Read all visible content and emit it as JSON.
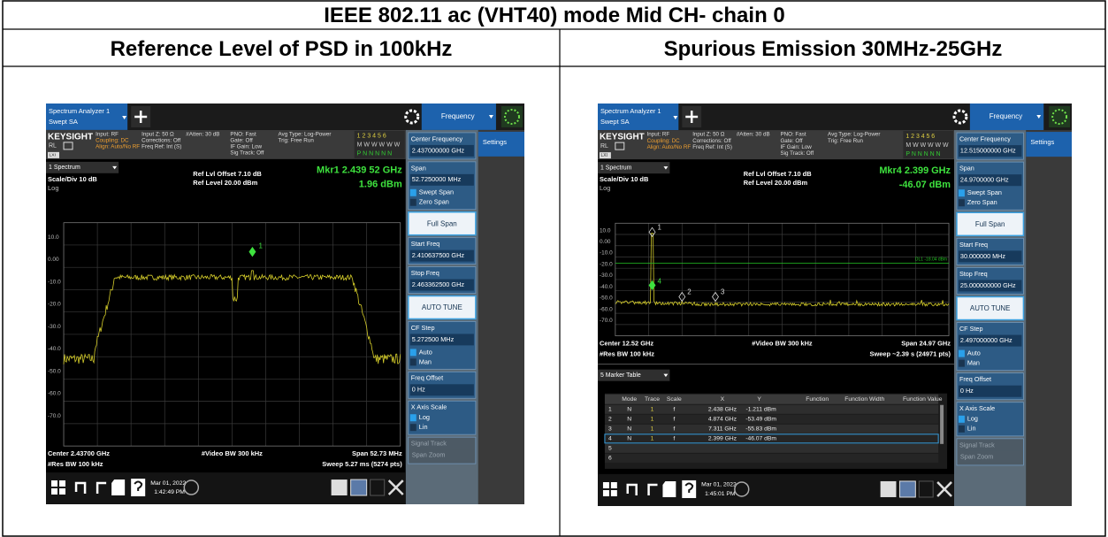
{
  "title": "IEEE 802.11 ac (VHT40) mode Mid CH- chain 0",
  "columns": [
    "Reference Level of PSD in 100kHz",
    "Spurious Emission 30MHz-25GHz"
  ],
  "screens": [
    {
      "app": [
        "Spectrum Analyzer 1",
        "Swept SA"
      ],
      "tab": "Frequency",
      "settings": "Settings",
      "brand": "KEYSIGHT",
      "rl": "RL",
      "lxi": "LXI",
      "info": [
        [
          "Input: RF",
          "Coupling: DC",
          "Align: Auto/No RF"
        ],
        [
          "Input Z: 50 Ω",
          "Corrections: Off",
          "Freq Ref: Int (S)"
        ],
        [
          "#Atten: 30 dB"
        ],
        [
          "PNO: Fast",
          "Gate: Off",
          "IF Gain: Low",
          "Sig Track: Off"
        ],
        [
          "Avg Type: Log-Power",
          "Trig: Free Run"
        ]
      ],
      "traces": [
        "1 2 3 4 5 6",
        "M W W W W W",
        "P N N N N N"
      ],
      "window": "1 Spectrum",
      "scale": "Scale/Div 10 dB",
      "log": "Log",
      "ref": [
        "Ref Lvl Offset 7.10 dB",
        "Ref Level 20.00 dBm"
      ],
      "marker": [
        "Mkr1  2.439 52 GHz",
        "1.96 dBm"
      ],
      "marker_labels": [
        "1"
      ],
      "ylabels": [
        "10.0",
        "0.00",
        "-10.0",
        "-20.0",
        "-30.0",
        "-40.0",
        "-50.0",
        "-60.0",
        "-70.0"
      ],
      "footer": {
        "left": [
          "Center 2.43700 GHz",
          "#Res BW 100 kHz"
        ],
        "mid": "#Video BW 300 kHz",
        "right": [
          "Span 52.73 MHz",
          "Sweep 5.27 ms (5274 pts)"
        ]
      },
      "softkeys": [
        {
          "label": "Center Frequency",
          "value": "2.437000000 GHz"
        },
        {
          "label": "Span",
          "value": "52.7250000 MHz",
          "options": [
            "Swept Span",
            "Zero Span"
          ]
        },
        {
          "button": "Full Span"
        },
        {
          "label": "Start Freq",
          "value": "2.410637500 GHz"
        },
        {
          "label": "Stop Freq",
          "value": "2.463362500 GHz"
        },
        {
          "button": "AUTO TUNE"
        },
        {
          "label": "CF Step",
          "value": "5.272500 MHz",
          "options": [
            "Auto",
            "Man"
          ]
        },
        {
          "label": "Freq Offset",
          "value": "0 Hz"
        },
        {
          "label": "X Axis Scale",
          "options": [
            "Log",
            "Lin"
          ]
        },
        {
          "label": "Signal Track",
          "value": "Span Zoom",
          "disabled": true
        }
      ],
      "date": "Mar 01, 2022",
      "time": "1:42:49 PM"
    },
    {
      "app": [
        "Spectrum Analyzer 1",
        "Swept SA"
      ],
      "tab": "Frequency",
      "settings": "Settings",
      "brand": "KEYSIGHT",
      "rl": "RL",
      "lxi": "LXI",
      "info": [
        [
          "Input: RF",
          "Coupling: DC",
          "Align: Auto/No RF"
        ],
        [
          "Input Z: 50 Ω",
          "Corrections: Off",
          "Freq Ref: Int (S)"
        ],
        [
          "#Atten: 30 dB"
        ],
        [
          "PNO: Fast",
          "Gate: Off",
          "IF Gain: Low",
          "Sig Track: Off"
        ],
        [
          "Avg Type: Log-Power",
          "Trig: Free Run"
        ]
      ],
      "traces": [
        "1 2 3 4 5 6",
        "M W W W W W",
        "P N N N N N"
      ],
      "window": "1 Spectrum",
      "scale": "Scale/Div 10 dB",
      "log": "Log",
      "ref": [
        "Ref Lvl Offset 7.10 dB",
        "Ref Level 20.00 dBm"
      ],
      "marker": [
        "Mkr4  2.399 GHz",
        "-46.07 dBm"
      ],
      "marker_labels": [
        "1",
        "2",
        "3",
        "4"
      ],
      "display_line": "DL1 -18.04 dBm",
      "ylabels": [
        "10.0",
        "0.00",
        "-10.0",
        "-20.0",
        "-30.0",
        "-40.0",
        "-50.0",
        "-60.0",
        "-70.0"
      ],
      "footer": {
        "left": [
          "Center 12.52 GHz",
          "#Res BW 100 kHz"
        ],
        "mid": "#Video BW 300 kHz",
        "right": [
          "Span 24.97 GHz",
          "Sweep ~2.39 s (24971 pts)"
        ]
      },
      "marker_table": {
        "title": "5 Marker Table",
        "headers": [
          "Mode",
          "Trace",
          "Scale",
          "X",
          "Y",
          "Function",
          "Function Width",
          "Function Value"
        ],
        "rows": [
          [
            "1",
            "N",
            "1",
            "f",
            "2.438 GHz",
            "-1.211 dBm"
          ],
          [
            "2",
            "N",
            "1",
            "f",
            "4.874 GHz",
            "-53.49 dBm"
          ],
          [
            "3",
            "N",
            "1",
            "f",
            "7.311 GHz",
            "-55.83 dBm"
          ],
          [
            "4",
            "N",
            "1",
            "f",
            "2.399 GHz",
            "-46.07 dBm"
          ],
          [
            "5"
          ],
          [
            "6"
          ]
        ]
      },
      "softkeys": [
        {
          "label": "Center Frequency",
          "value": "12.515000000 GHz"
        },
        {
          "label": "Span",
          "value": "24.9700000 GHz",
          "options": [
            "Swept Span",
            "Zero Span"
          ]
        },
        {
          "button": "Full Span"
        },
        {
          "label": "Start Freq",
          "value": "30.000000 MHz"
        },
        {
          "label": "Stop Freq",
          "value": "25.000000000 GHz"
        },
        {
          "button": "AUTO TUNE"
        },
        {
          "label": "CF Step",
          "value": "2.497000000 GHz",
          "options": [
            "Auto",
            "Man"
          ]
        },
        {
          "label": "Freq Offset",
          "value": "0 Hz"
        },
        {
          "label": "X Axis Scale",
          "options": [
            "Log",
            "Lin"
          ]
        },
        {
          "label": "Signal Track",
          "value": "Span Zoom",
          "disabled": true
        }
      ],
      "date": "Mar 01, 2022",
      "time": "1:45:01 PM"
    }
  ]
}
